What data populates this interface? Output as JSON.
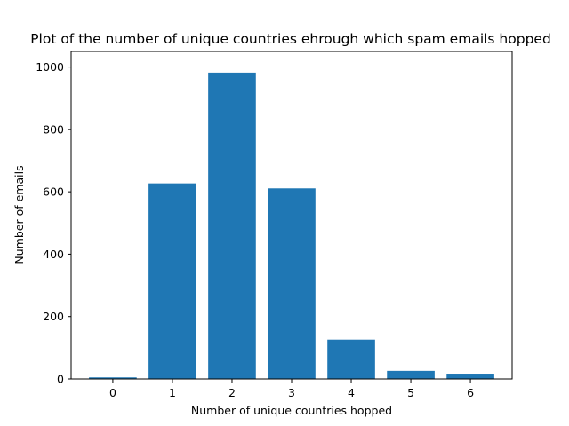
{
  "chart_data": {
    "type": "bar",
    "title": "Plot of the number of unique countries ehrough which spam emails hopped",
    "xlabel": "Number of unique countries hopped",
    "ylabel": "Number of emails",
    "categories": [
      "0",
      "1",
      "2",
      "3",
      "4",
      "5",
      "6"
    ],
    "values": [
      5,
      627,
      982,
      611,
      126,
      26,
      17
    ],
    "ylim": [
      0,
      1050
    ],
    "yticks": [
      "0",
      "200",
      "400",
      "600",
      "800",
      "1000"
    ],
    "bar_color": "#1f77b4",
    "grid": false,
    "legend": "none"
  }
}
